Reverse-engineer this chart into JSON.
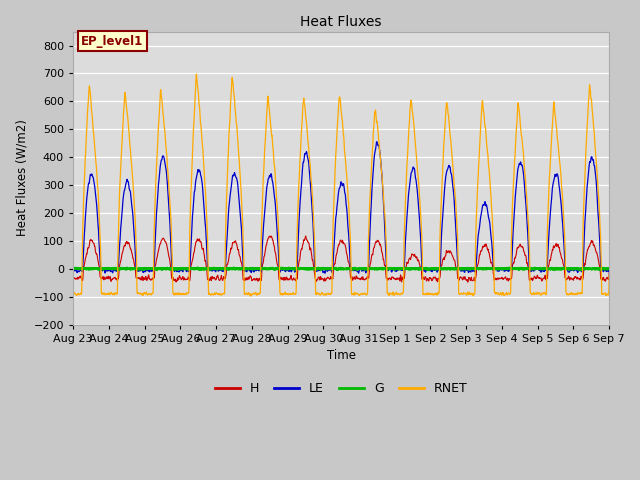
{
  "title": "Heat Fluxes",
  "xlabel": "Time",
  "ylabel": "Heat Fluxes (W/m2)",
  "ylim": [
    -200,
    850
  ],
  "yticks": [
    -200,
    -100,
    0,
    100,
    200,
    300,
    400,
    500,
    600,
    700,
    800
  ],
  "annotation": "EP_level1",
  "fig_bg": "#d8d8d8",
  "plot_bg": "#dcdcdc",
  "colors": {
    "H": "#cc0000",
    "LE": "#0000cc",
    "G": "#00bb00",
    "RNET": "#ffaa00"
  },
  "legend_items": [
    "H",
    "LE",
    "G",
    "RNET"
  ],
  "x_tick_labels": [
    "Aug 23",
    "Aug 24",
    "Aug 25",
    "Aug 26",
    "Aug 27",
    "Aug 28",
    "Aug 29",
    "Aug 30",
    "Aug 31",
    "Sep 1",
    "Sep 2",
    "Sep 3",
    "Sep 4",
    "Sep 5",
    "Sep 6",
    "Sep 7"
  ],
  "days": 15,
  "pts_per_day": 144
}
